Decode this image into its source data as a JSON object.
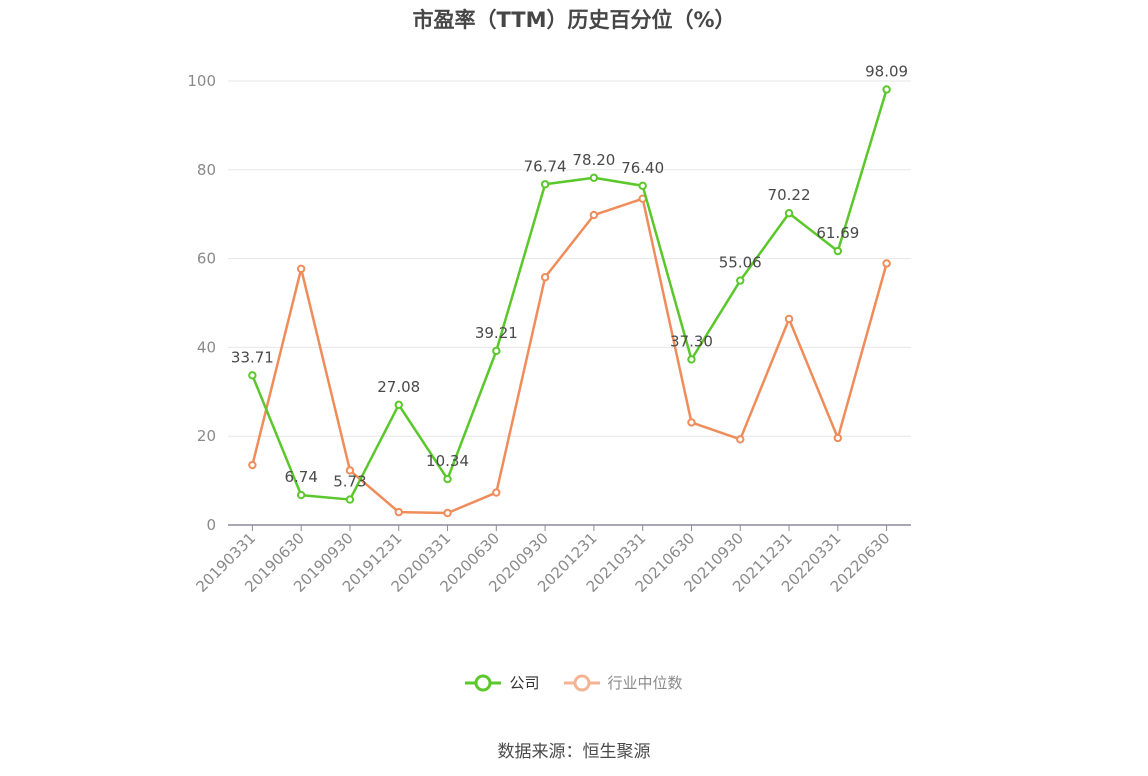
{
  "chart_data": {
    "type": "line",
    "title": "市盈率（TTM）历史百分位（%）",
    "categories": [
      "20190331",
      "20190630",
      "20190930",
      "20191231",
      "20200331",
      "20200630",
      "20200930",
      "20201231",
      "20210331",
      "20210630",
      "20210930",
      "20211231",
      "20220331",
      "20220630"
    ],
    "series": [
      {
        "name": "公司",
        "color": "#5ac72a",
        "values": [
          33.71,
          6.74,
          5.73,
          27.08,
          10.34,
          39.21,
          76.74,
          78.2,
          76.4,
          37.3,
          55.06,
          70.22,
          61.69,
          98.09
        ],
        "labels": [
          "33.71",
          "6.74",
          "5.73",
          "27.08",
          "10.34",
          "39.21",
          "76.74",
          "78.20",
          "76.40",
          "37.30",
          "55.06",
          "70.22",
          "61.69",
          "98.09"
        ]
      },
      {
        "name": "行业中位数",
        "color": "#f08c5a",
        "values": [
          13.5,
          57.7,
          12.3,
          2.9,
          2.7,
          7.3,
          55.8,
          69.8,
          73.5,
          23.1,
          19.3,
          46.4,
          19.6,
          58.9
        ]
      }
    ],
    "ylim": [
      0,
      100
    ],
    "yticks": [
      "0",
      "20",
      "40",
      "60",
      "80",
      "100"
    ],
    "grid": true,
    "legend_position": "bottom"
  },
  "source_text": "数据来源：恒生聚源"
}
